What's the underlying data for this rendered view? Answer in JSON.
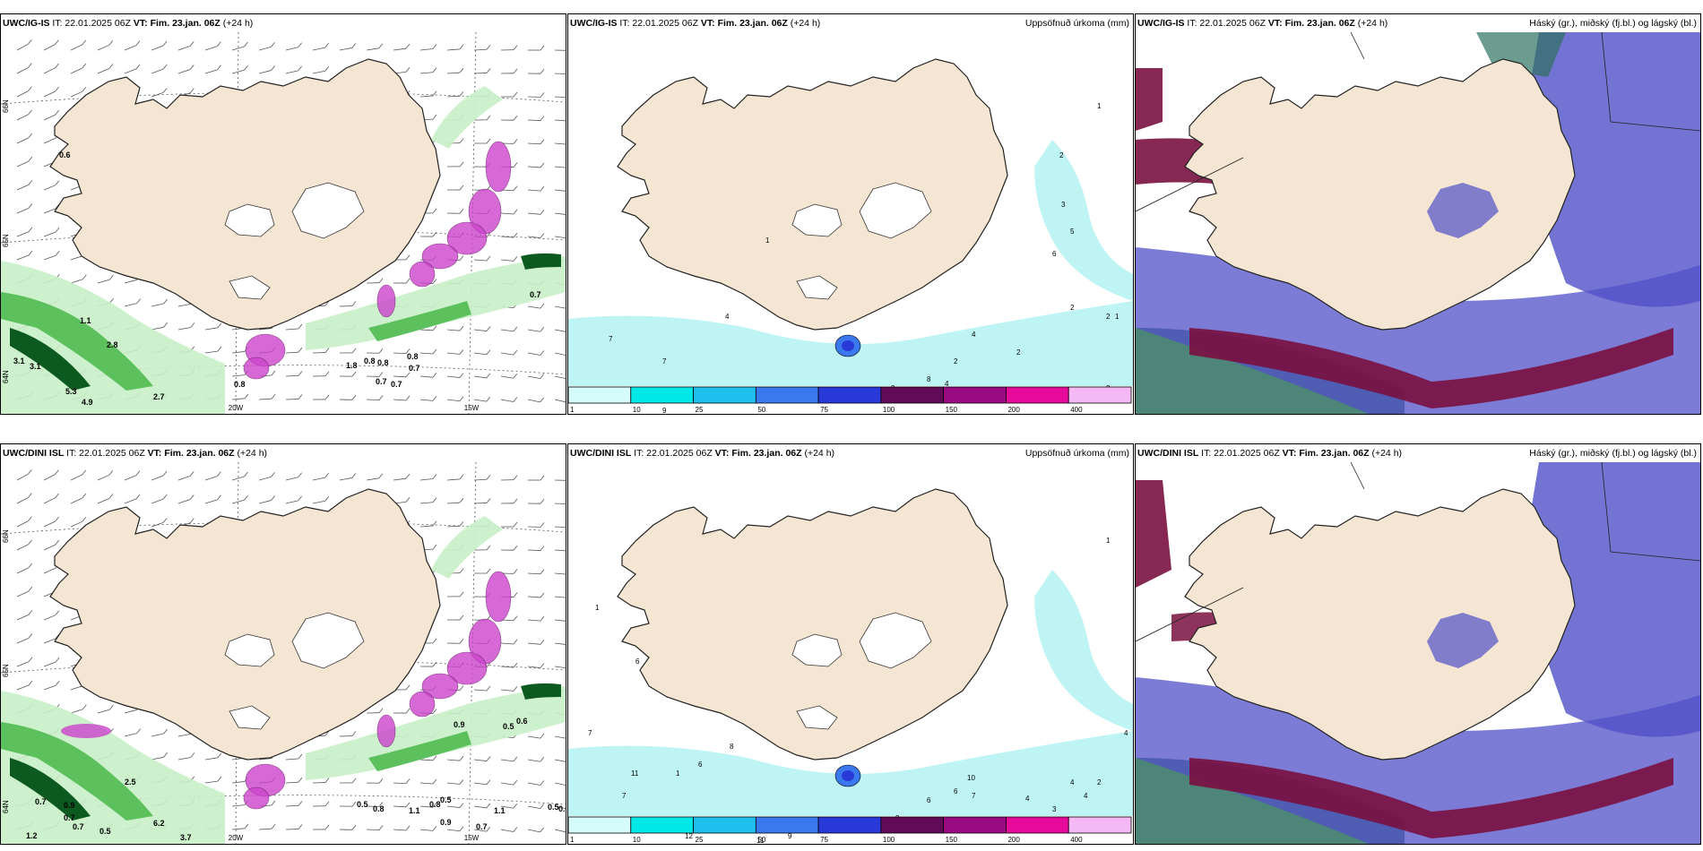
{
  "panels": [
    {
      "id": "p1",
      "model": "UWC/IG-IS",
      "it_label": "IT: 22.01.2025 06Z",
      "vt_label": "VT: Fim. 23.jan. 06Z",
      "lead": "(+24 h)",
      "right_title": "",
      "type": "wind-precip",
      "lon_labels": [
        "20W",
        "15W"
      ],
      "lat_labels": [
        "66N",
        "65N",
        "64N"
      ],
      "values": [
        "0.6",
        "1.1",
        "3.1",
        "3.1",
        "2.8",
        "5.3",
        "4.9",
        "2.7",
        "0.8",
        "0.7",
        "0.8",
        "0.7",
        "0.7",
        "1.8",
        "0.8",
        "0.8",
        "0.7"
      ]
    },
    {
      "id": "p2",
      "model": "UWC/IG-IS",
      "it_label": "IT: 22.01.2025 06Z",
      "vt_label": "VT: Fim. 23.jan. 06Z",
      "lead": "(+24 h)",
      "right_title": "Uppsöfnuð úrkoma (mm)",
      "type": "accum-precip",
      "colorbar": {
        "ticks": [
          "1",
          "10",
          "25",
          "50",
          "75",
          "100",
          "150",
          "200",
          "400"
        ],
        "colors": [
          "#d6fbfb",
          "#00e8e8",
          "#20c0ee",
          "#3a78ee",
          "#2a3ad8",
          "#600a58",
          "#9a0a80",
          "#e80a9a",
          "#f4b8f4"
        ]
      },
      "values": [
        "1",
        "2",
        "3",
        "5",
        "6",
        "4",
        "7",
        "1",
        "8",
        "2",
        "4",
        "7",
        "3",
        "2",
        "2",
        "3",
        "2",
        "1",
        "7",
        "9",
        "4",
        "2"
      ]
    },
    {
      "id": "p3",
      "model": "UWC/IG-IS",
      "it_label": "IT: 22.01.2025 06Z",
      "vt_label": "VT: Fim. 23.jan. 06Z",
      "lead": "(+24 h)",
      "right_title": "Háský (gr.), miðský (fj.bl.) og lágský (bl.)",
      "type": "clouds"
    },
    {
      "id": "p4",
      "model": "UWC/DINI ISL",
      "it_label": "IT: 22.01.2025 06Z",
      "vt_label": "VT: Fim. 23.jan. 06Z",
      "lead": "(+24 h)",
      "right_title": "",
      "type": "wind-precip",
      "lon_labels": [
        "20W",
        "15W"
      ],
      "lat_labels": [
        "66N",
        "65N",
        "64N"
      ],
      "values": [
        "0.5",
        "0.6",
        "0.7",
        "0.9",
        "0.7",
        "0.7",
        "0.5",
        "6.2",
        "3.7",
        "1.2",
        "0.5",
        "0.8",
        "1.1",
        "0.8",
        "0.9",
        "0.5",
        "0.7",
        "1.1",
        "0.5",
        "0.6",
        "2.5",
        "0.9"
      ]
    },
    {
      "id": "p5",
      "model": "UWC/DINI ISL",
      "it_label": "IT: 22.01.2025 06Z",
      "vt_label": "VT: Fim. 23.jan. 06Z",
      "lead": "(+24 h)",
      "right_title": "Uppsöfnuð úrkoma (mm)",
      "type": "accum-precip",
      "colorbar": {
        "ticks": [
          "1",
          "10",
          "25",
          "50",
          "75",
          "100",
          "150",
          "200",
          "400"
        ],
        "colors": [
          "#d6fbfb",
          "#00e8e8",
          "#20c0ee",
          "#3a78ee",
          "#2a3ad8",
          "#600a58",
          "#9a0a80",
          "#e80a9a",
          "#f4b8f4"
        ]
      },
      "values": [
        "1",
        "6",
        "7",
        "11",
        "7",
        "6",
        "8",
        "1",
        "12",
        "11",
        "9",
        "9",
        "3",
        "6",
        "6",
        "10",
        "7",
        "4",
        "3",
        "4",
        "4",
        "2",
        "4",
        "1"
      ]
    },
    {
      "id": "p6",
      "model": "UWC/DINI ISL",
      "it_label": "IT: 22.01.2025 06Z",
      "vt_label": "VT: Fim. 23.jan. 06Z",
      "lead": "(+24 h)",
      "right_title": "Háský (gr.), miðský (fj.bl.) og lágský (bl.)",
      "type": "clouds"
    }
  ],
  "colors": {
    "land": "#f5e6d3",
    "coast": "#222222",
    "precip_light": "#c8f0c8",
    "precip_mid": "#5cc05c",
    "precip_dark": "#0d5a20",
    "snow": "#cc44cc",
    "sea_cyan": "#bff4f4",
    "cloud_high": "#2e7060",
    "cloud_mid": "#7a1040",
    "cloud_low": "#5050c8"
  }
}
